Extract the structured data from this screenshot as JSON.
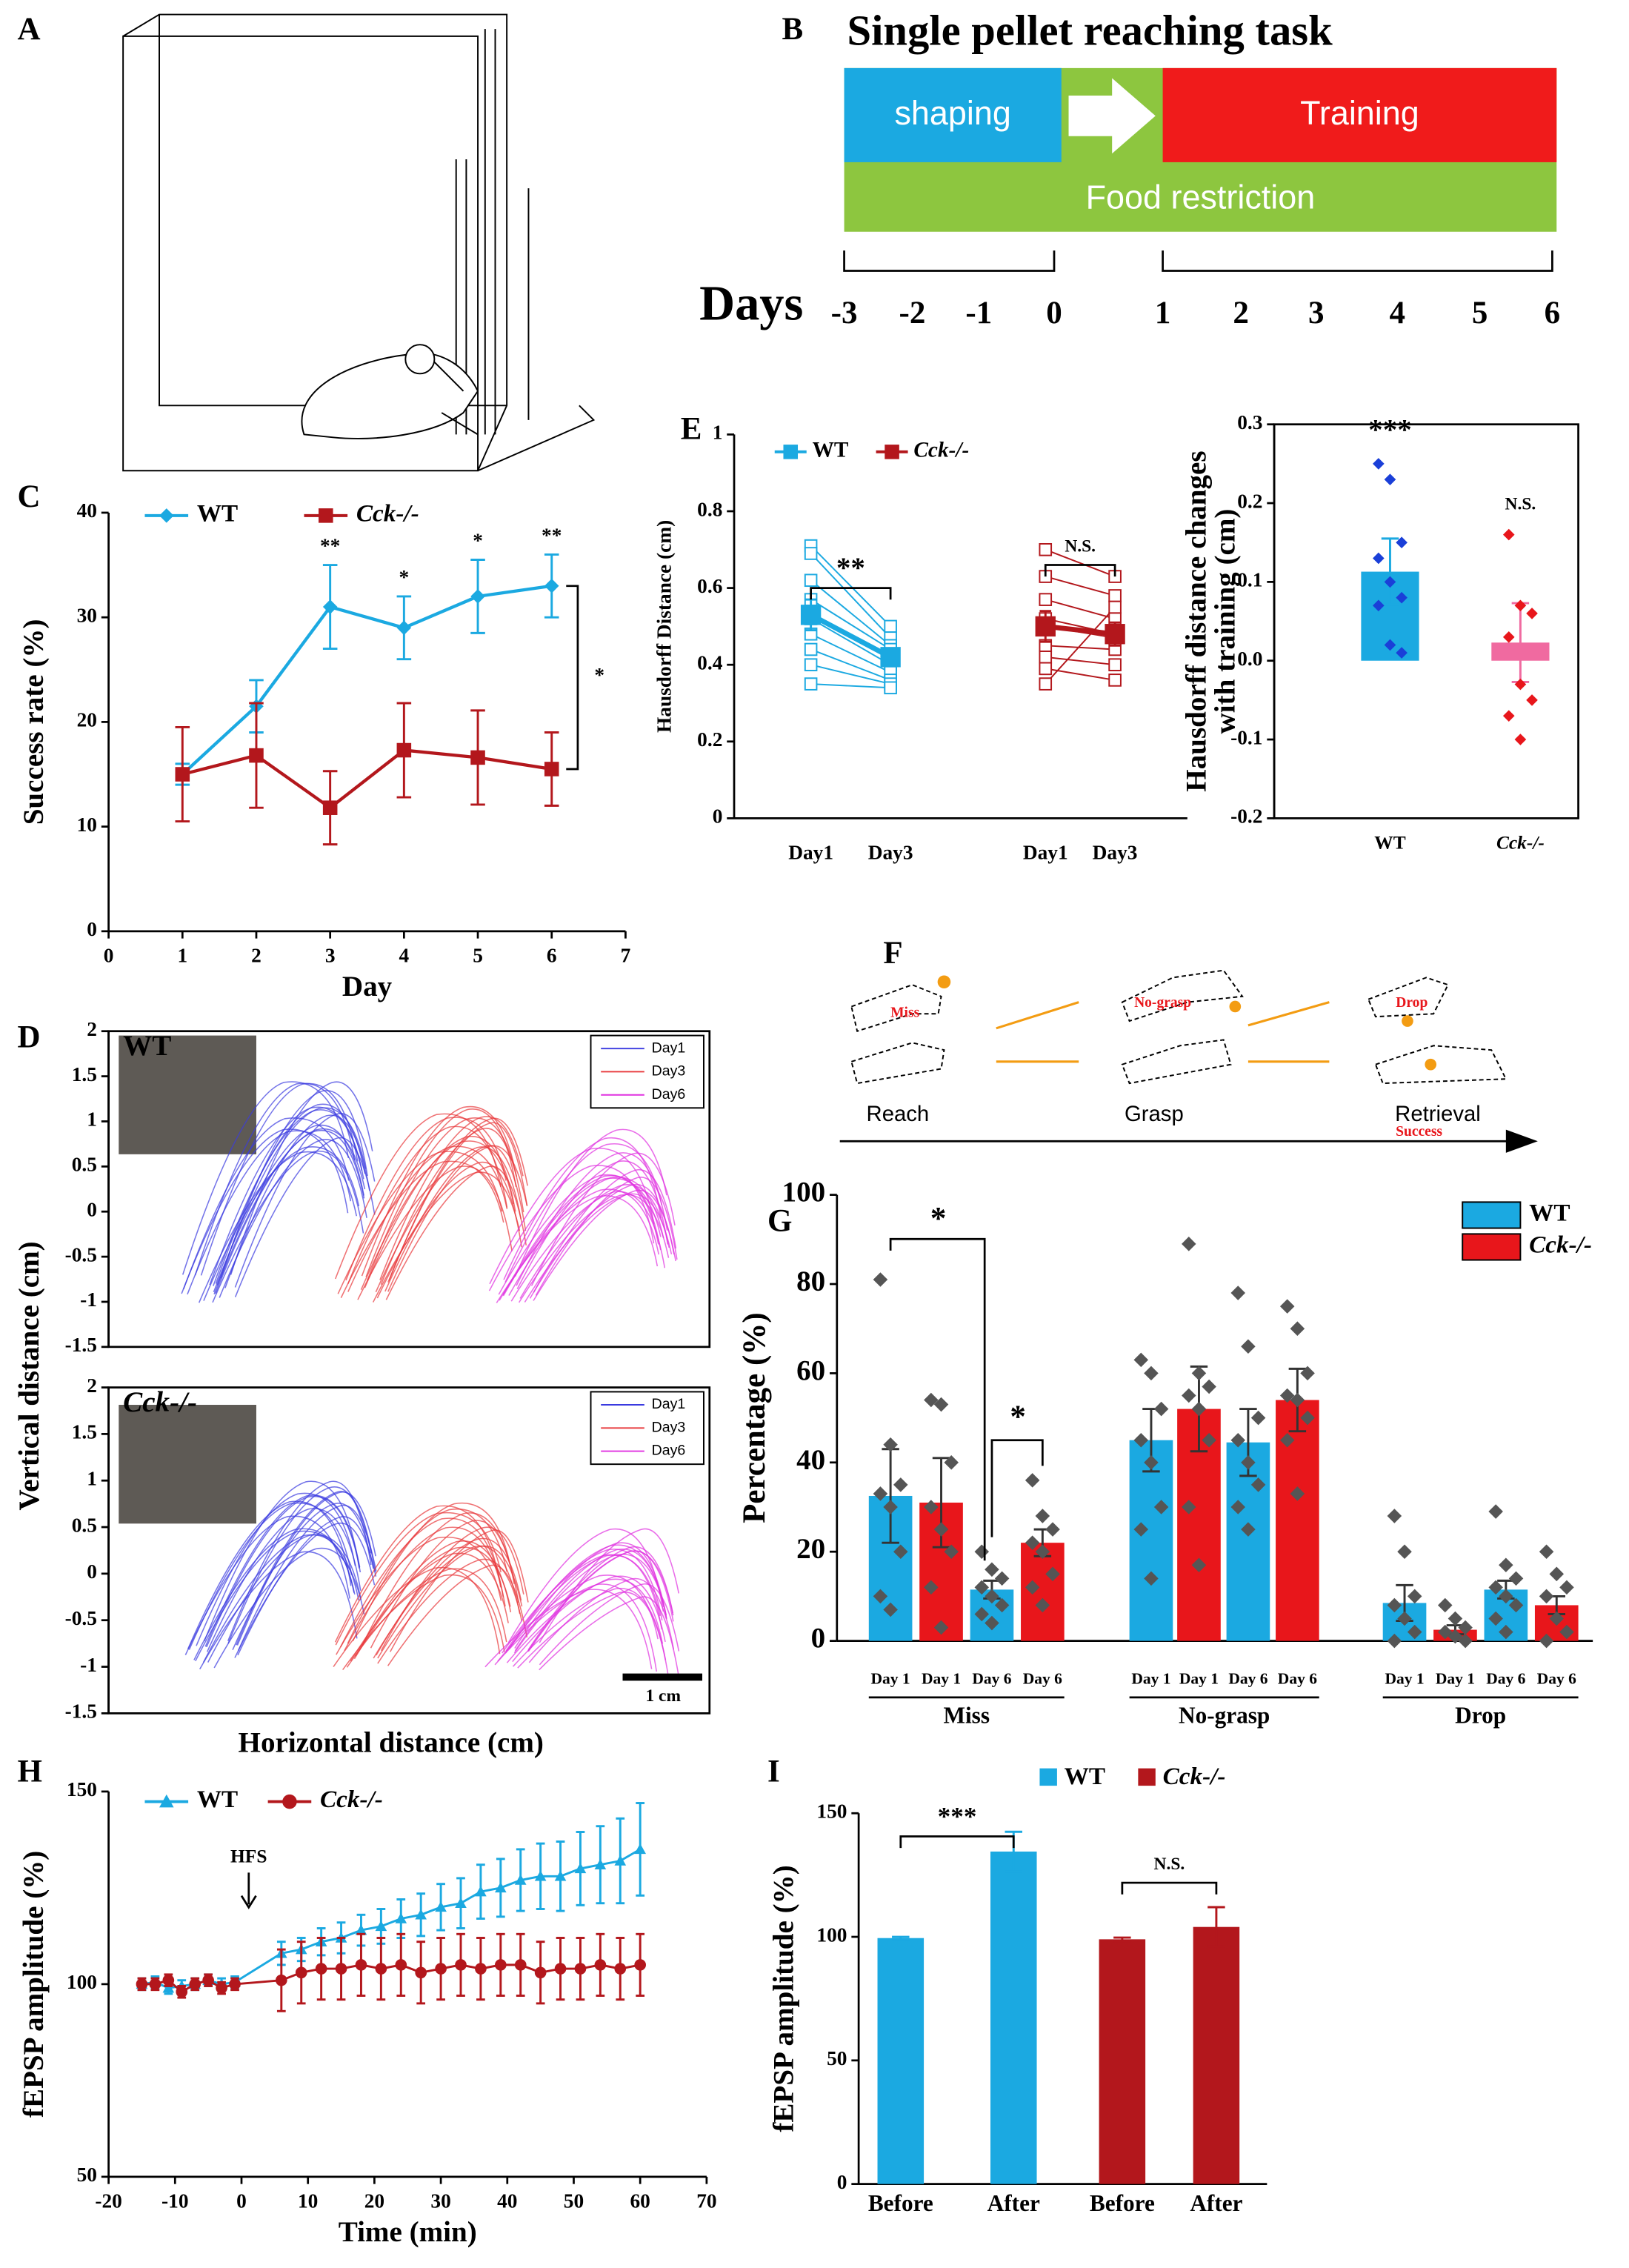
{
  "panel_labels": [
    "A",
    "B",
    "C",
    "D",
    "E",
    "F",
    "G",
    "H",
    "I"
  ],
  "diagram_b": {
    "title": "Single pellet reaching task",
    "shaping": "shaping",
    "training": "Training",
    "food": "Food restriction",
    "days_label": "Days",
    "days": [
      "-3",
      "-2",
      "-1",
      "0",
      "1",
      "2",
      "3",
      "4",
      "5",
      "6"
    ]
  },
  "diagram_f": {
    "outcomes": [
      "Miss",
      "No-grasp",
      "Drop",
      "Success"
    ],
    "phases": [
      "Reach",
      "Grasp",
      "Retrieval"
    ]
  },
  "chart_data": [
    {
      "type": "line",
      "xlabel": "Day",
      "ylabel": "Success rate (%)",
      "x": [
        1,
        2,
        3,
        4,
        5,
        6
      ],
      "xlim": [
        0,
        7
      ],
      "xticks": [
        0,
        1,
        2,
        3,
        4,
        5,
        6,
        7
      ],
      "ylim": [
        0,
        40
      ],
      "yticks": [
        0,
        10,
        20,
        30,
        40
      ],
      "series": [
        {
          "name": "WT",
          "color": "#1ba9e1",
          "marker": "diamond",
          "values": [
            15,
            21.5,
            31,
            29,
            32,
            33
          ],
          "errors": [
            1,
            2.5,
            4,
            3,
            3.5,
            3
          ]
        },
        {
          "name": "Cck-/-",
          "color": "#b3171c",
          "marker": "square",
          "values": [
            15,
            16.8,
            11.8,
            17.3,
            16.6,
            15.5
          ],
          "errors": [
            4.5,
            5,
            3.5,
            4.5,
            4.5,
            3.5
          ]
        }
      ],
      "annotations": [
        {
          "x": 3,
          "label": "**"
        },
        {
          "x": 4,
          "label": "*"
        },
        {
          "x": 5,
          "label": "*"
        },
        {
          "x": 6,
          "label": "**"
        }
      ],
      "bracket_label": "*"
    },
    {
      "type": "trajectory",
      "title": "WT",
      "ylabel": "Vertical distance (cm)",
      "ylim": [
        -1.5,
        2
      ],
      "yticks": [
        -1.5,
        -1,
        -0.5,
        0,
        0.5,
        1,
        1.5,
        2
      ],
      "series": [
        {
          "name": "Day1",
          "color": "#3a3ae0"
        },
        {
          "name": "Day3",
          "color": "#e8383a"
        },
        {
          "name": "Day6",
          "color": "#e030e0"
        }
      ]
    },
    {
      "type": "trajectory",
      "title": "Cck-/-",
      "xlabel": "Horizontal distance (cm)",
      "scale_bar": "1 cm",
      "ylim": [
        -1.5,
        2
      ],
      "yticks": [
        -1.5,
        -1,
        -0.5,
        0,
        0.5,
        1,
        1.5,
        2
      ],
      "series": [
        {
          "name": "Day1",
          "color": "#3a3ae0"
        },
        {
          "name": "Day3",
          "color": "#e8383a"
        },
        {
          "name": "Day6",
          "color": "#e030e0"
        }
      ]
    },
    {
      "type": "paired",
      "ylabel": "Hausdorff Distance (cm)",
      "categories": [
        "Day1",
        "Day3"
      ],
      "ylim": [
        0,
        1
      ],
      "yticks": [
        0,
        0.2,
        0.4,
        0.6,
        0.8,
        1
      ],
      "series": [
        {
          "name": "WT",
          "color": "#1ba9e1",
          "values": [
            0.53,
            0.42
          ],
          "errors": [
            0.04,
            0.02
          ],
          "subjects": [
            [
              0.71,
              0.5
            ],
            [
              0.69,
              0.47
            ],
            [
              0.62,
              0.45
            ],
            [
              0.57,
              0.44
            ],
            [
              0.52,
              0.4
            ],
            [
              0.48,
              0.38
            ],
            [
              0.44,
              0.36
            ],
            [
              0.4,
              0.35
            ],
            [
              0.35,
              0.34
            ]
          ]
        },
        {
          "name": "Cck-/-",
          "color": "#b3171c",
          "values": [
            0.5,
            0.48
          ],
          "errors": [
            0.04,
            0.03
          ],
          "subjects": [
            [
              0.7,
              0.63
            ],
            [
              0.63,
              0.58
            ],
            [
              0.57,
              0.52
            ],
            [
              0.52,
              0.48
            ],
            [
              0.5,
              0.47
            ],
            [
              0.45,
              0.44
            ],
            [
              0.42,
              0.4
            ],
            [
              0.39,
              0.36
            ],
            [
              0.35,
              0.55
            ]
          ]
        }
      ],
      "annotations": [
        "**",
        "N.S."
      ]
    },
    {
      "type": "bar",
      "ylabel": [
        "Hausdorff distance changes",
        "with training (cm)"
      ],
      "categories": [
        "WT",
        "Cck-/-"
      ],
      "colors": [
        "#1ba9e1",
        "#f06aa0"
      ],
      "point_colors": [
        "#1a3fd8",
        "#e8161b"
      ],
      "values": [
        0.113,
        0.023
      ],
      "errors": [
        0.042,
        0.05
      ],
      "points": [
        [
          0.25,
          0.23,
          0.15,
          0.13,
          0.1,
          0.08,
          0.07,
          0.02,
          0.01
        ],
        [
          0.16,
          0.07,
          0.06,
          0.03,
          -0.03,
          -0.05,
          -0.07,
          -0.1
        ]
      ],
      "ylim": [
        -0.2,
        0.3
      ],
      "yticks": [
        -0.2,
        -0.1,
        {
          "value": 0,
          "label": "0.0"
        },
        0.1,
        0.2,
        0.3
      ],
      "annotations": [
        "***",
        "N.S."
      ]
    },
    {
      "type": "grouped-bar",
      "ylabel": "Percentage (%)",
      "groups": [
        "Miss",
        "No-grasp",
        "Drop"
      ],
      "days": [
        "Day 1",
        "Day 6"
      ],
      "ylim": [
        0,
        100
      ],
      "yticks": [
        0,
        20,
        40,
        60,
        80,
        100
      ],
      "series": [
        {
          "name": "WT",
          "color": "#1ba9e1",
          "values": [
            32.5,
            11.5,
            45,
            44.5,
            8.5,
            11.5
          ],
          "errors": [
            10.5,
            2,
            7,
            7.5,
            4,
            2
          ],
          "points": [
            [
              81,
              44,
              35,
              33,
              30,
              20,
              10,
              7
            ],
            [
              20,
              16,
              14,
              12,
              10,
              8,
              6,
              4
            ],
            [
              63,
              60,
              52,
              45,
              40,
              30,
              25,
              14
            ],
            [
              78,
              66,
              50,
              45,
              40,
              35,
              30,
              25
            ],
            [
              28,
              20,
              10,
              8,
              5,
              2,
              0
            ],
            [
              29,
              17,
              14,
              12,
              10,
              8,
              5,
              2
            ]
          ]
        },
        {
          "name": "Cck-/-",
          "color": "#e8161b",
          "values": [
            31,
            22,
            52,
            54,
            2.5,
            8
          ],
          "errors": [
            10,
            3,
            9.5,
            7,
            1,
            2
          ],
          "points": [
            [
              54,
              53,
              40,
              30,
              25,
              20,
              12,
              3
            ],
            [
              36,
              28,
              25,
              22,
              20,
              15,
              12,
              8
            ],
            [
              89,
              60,
              57,
              55,
              52,
              45,
              30,
              17
            ],
            [
              75,
              70,
              60,
              55,
              54,
              50,
              45,
              33
            ],
            [
              8,
              5,
              3,
              2,
              1,
              0
            ],
            [
              20,
              15,
              12,
              10,
              5,
              2,
              0
            ]
          ]
        }
      ],
      "annotations": [
        "*",
        "*"
      ]
    },
    {
      "type": "line",
      "xlabel": "Time (min)",
      "ylabel": "fEPSP amplitude (%)",
      "annotation": "HFS",
      "x": [
        -15,
        -13,
        -11,
        -9,
        -7,
        -5,
        -3,
        -1,
        6,
        9,
        12,
        15,
        18,
        21,
        24,
        27,
        30,
        33,
        36,
        39,
        42,
        45,
        48,
        51,
        54,
        57,
        60
      ],
      "xlim": [
        -20,
        70
      ],
      "xticks": [
        -20,
        -10,
        0,
        10,
        20,
        30,
        40,
        50,
        60,
        70
      ],
      "ylim": [
        50,
        150
      ],
      "yticks": [
        50,
        100,
        150
      ],
      "series": [
        {
          "name": "WT",
          "color": "#1ba9e1",
          "marker": "triangle",
          "values": [
            100,
            100.5,
            99,
            99.5,
            100,
            101,
            100,
            100.5,
            108,
            109,
            111,
            112,
            114,
            115,
            117,
            118,
            120,
            121,
            124,
            125,
            127,
            128,
            128,
            130,
            131,
            132,
            135
          ],
          "errors": [
            1.5,
            1.5,
            1.5,
            1.5,
            1.5,
            1.5,
            1.5,
            1.5,
            3,
            3,
            3.5,
            4,
            4,
            4.5,
            5,
            5.5,
            6,
            6.5,
            7,
            7.5,
            8,
            8.5,
            9,
            9.5,
            10,
            11,
            12
          ]
        },
        {
          "name": "Cck-/-",
          "color": "#b3171c",
          "marker": "circle",
          "values": [
            100,
            100,
            101,
            98,
            100,
            101,
            99,
            100,
            101,
            103,
            104,
            104,
            105,
            104,
            105,
            103,
            104,
            105,
            104,
            105,
            105,
            103,
            104,
            104,
            105,
            104,
            105
          ],
          "errors": [
            1.5,
            1.5,
            1.5,
            1.5,
            1.5,
            1.5,
            1.5,
            1.5,
            8,
            8,
            8,
            8,
            8,
            8,
            8,
            8,
            8,
            8,
            8,
            8,
            8,
            8,
            8,
            8,
            8,
            8,
            8
          ]
        }
      ]
    },
    {
      "type": "bar",
      "ylabel": "fEPSP amplitude (%)",
      "categories": [
        "Before",
        "After",
        "Before",
        "After"
      ],
      "colors": [
        "#1ba9e1",
        "#1ba9e1",
        "#b3171c",
        "#b3171c"
      ],
      "legend": [
        {
          "name": "WT",
          "color": "#1ba9e1"
        },
        {
          "name": "Cck-/-",
          "color": "#b3171c"
        }
      ],
      "values": [
        99.5,
        134.5,
        99,
        104
      ],
      "errors": [
        0.5,
        8,
        0.7,
        8
      ],
      "ylim": [
        0,
        150
      ],
      "yticks": [
        0,
        50,
        100,
        150
      ],
      "annotations": [
        "***",
        "N.S."
      ]
    }
  ]
}
